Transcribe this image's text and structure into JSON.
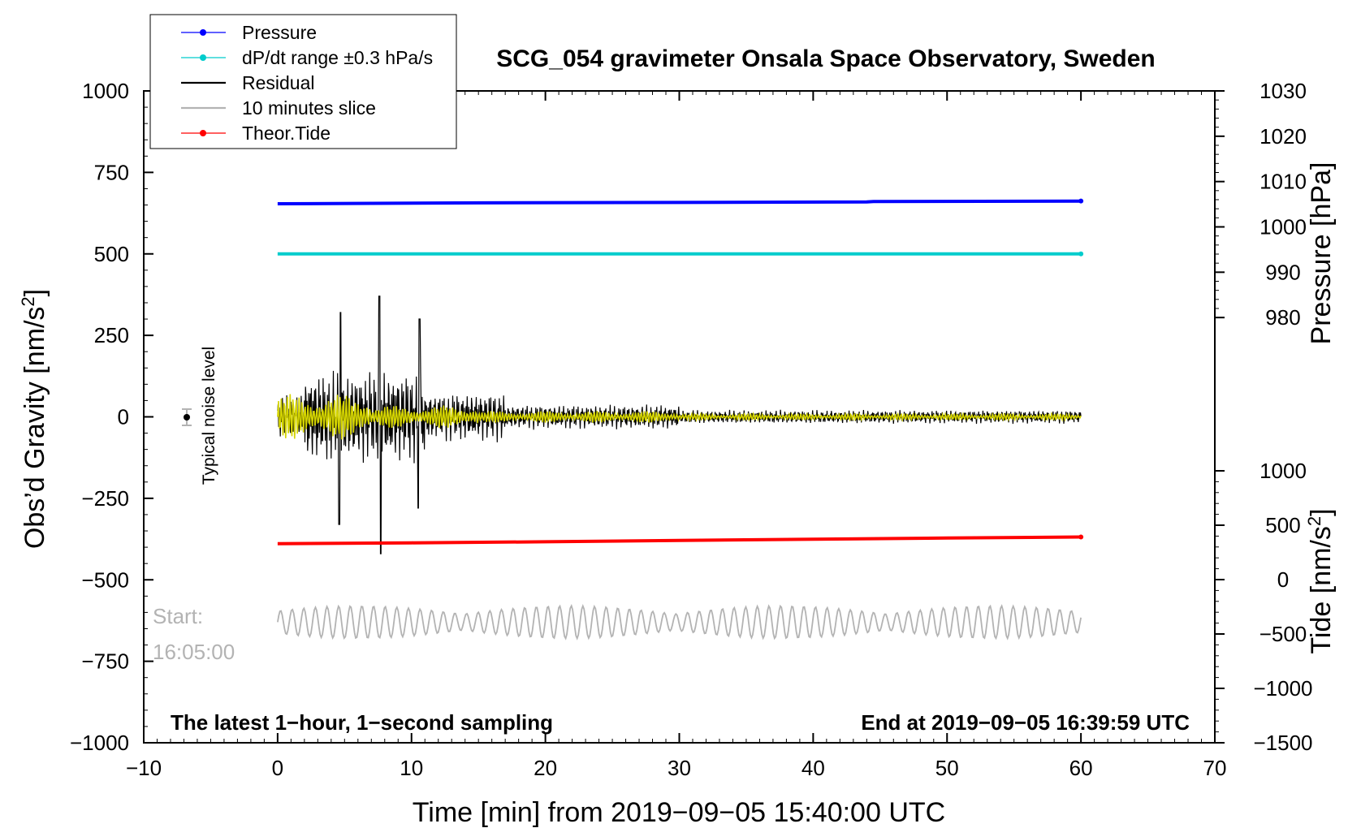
{
  "chart_data": {
    "type": "line",
    "title": "SCG_054 gravimeter Onsala Space Observatory, Sweden",
    "xlabel": "Time [min] from 2019−09−05 15:40:00 UTC",
    "ylabel_left_main": "Obs’d Gravity [nm/s",
    "ylabel_left_sup": "2",
    "ylabel_left_end": "]",
    "ylabel_right_top": "Pressure [hPa]",
    "ylabel_right_bottom_main": "Tide [nm/s",
    "ylabel_right_bottom_sup": "2",
    "ylabel_right_bottom_end": "]",
    "xlim": [
      -10,
      70
    ],
    "ylim_left": [
      -1000,
      1000
    ],
    "ylim_pressure": [
      970,
      1030
    ],
    "ylim_tide": [
      -1500,
      1000
    ],
    "x_ticks": [
      "−10",
      "0",
      "10",
      "20",
      "30",
      "40",
      "50",
      "60",
      "70"
    ],
    "x_tick_values": [
      -10,
      0,
      10,
      20,
      30,
      40,
      50,
      60,
      70
    ],
    "y_left_ticks": [
      "1000",
      "750",
      "500",
      "250",
      "0",
      "−250",
      "−500",
      "−750",
      "−1000"
    ],
    "y_left_tick_values": [
      1000,
      750,
      500,
      250,
      0,
      -250,
      -500,
      -750,
      -1000
    ],
    "y_pressure_ticks": [
      "1030",
      "1020",
      "1010",
      "1000",
      "990",
      "980"
    ],
    "y_pressure_tick_values": [
      1030,
      1020,
      1010,
      1000,
      990,
      980
    ],
    "y_tide_ticks": [
      "1000",
      "500",
      "0",
      "−500",
      "−1000",
      "−1500"
    ],
    "y_tide_tick_values": [
      1000,
      500,
      0,
      -500,
      -1000,
      -1500
    ],
    "legend": [
      {
        "label": "Pressure",
        "color": "#0000ff",
        "marker": true
      },
      {
        "label": "dP/dt range ±0.3 hPa/s",
        "color": "#00cccc",
        "marker": true
      },
      {
        "label": "Residual",
        "color": "#000000",
        "marker": false
      },
      {
        "label": "10 minutes slice",
        "color": "#b3b3b3",
        "marker": false
      },
      {
        "label": "Theor.Tide",
        "color": "#ff0000",
        "marker": true
      }
    ],
    "series": [
      {
        "name": "Pressure",
        "axis": "pressure",
        "color": "#0000ff",
        "x": [
          0,
          15,
          30,
          44,
          44.5,
          60
        ],
        "values": [
          1005.1,
          1005.3,
          1005.4,
          1005.5,
          1005.6,
          1005.7
        ]
      },
      {
        "name": "dP/dt range",
        "axis": "left",
        "color": "#00cccc",
        "x": [
          0,
          60
        ],
        "values": [
          500,
          500
        ]
      },
      {
        "name": "Theor.Tide",
        "axis": "tide",
        "color": "#ff0000",
        "x": [
          0,
          10,
          20,
          30,
          40,
          50,
          60
        ],
        "values": [
          330,
          338,
          348,
          360,
          372,
          382,
          392
        ]
      },
      {
        "name": "Residual",
        "axis": "left",
        "color": "#000000",
        "x_range": [
          0,
          60
        ],
        "approx_amplitude_early": 200,
        "approx_amplitude_late": 20
      },
      {
        "name": "10 minutes slice",
        "axis": "left",
        "color": "#b3b3b3",
        "x_range": [
          0,
          60
        ],
        "center": -630,
        "approx_amplitude": 50
      }
    ],
    "annotations": {
      "noise_label": "Typical noise level",
      "start_label": "Start:",
      "start_time": "16:05:00",
      "bottom_left": "The latest 1−hour, 1−second sampling",
      "bottom_right": "End at 2019−09−05 16:39:59 UTC"
    },
    "grid": false
  }
}
